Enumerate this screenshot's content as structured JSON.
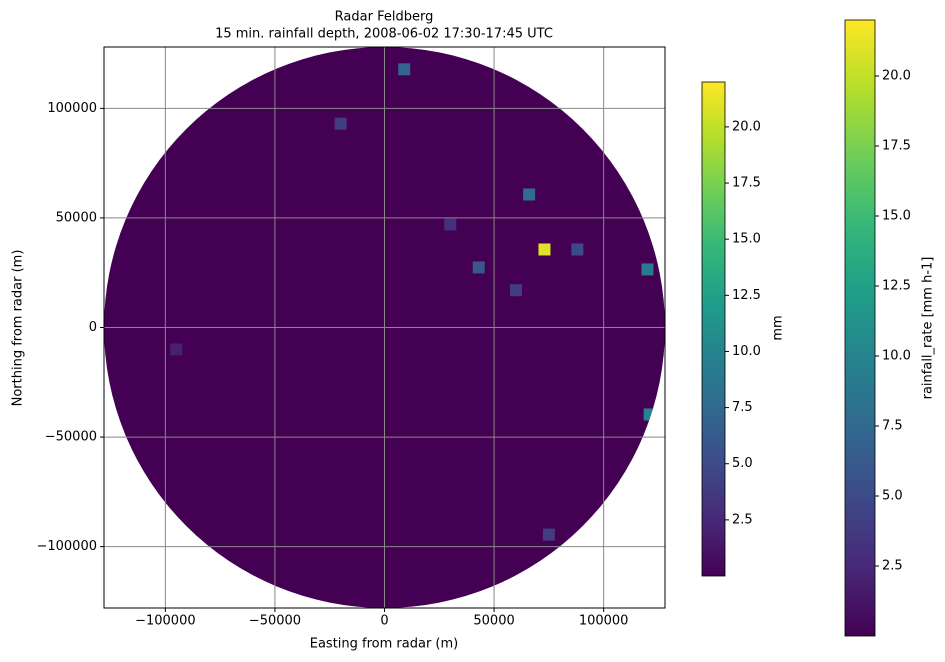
{
  "chart_data": {
    "type": "heatmap",
    "title": "Radar Feldberg",
    "subtitle": "15 min. rainfall depth, 2008-06-02 17:30-17:45 UTC",
    "xlabel": "Easting from radar (m)",
    "ylabel": "Northing from radar (m)",
    "x": [
      73000,
      66000,
      9000,
      120000,
      121000,
      -20000,
      43000,
      88000,
      75000,
      -95000,
      60000,
      30000
    ],
    "y": [
      35600,
      60700,
      117800,
      26500,
      -39700,
      93000,
      27400,
      35600,
      -94500,
      -10000,
      17000,
      47000
    ],
    "values": [
      21,
      8,
      7,
      9,
      10,
      4,
      6,
      5,
      4,
      2,
      4,
      3
    ],
    "xlim": [
      -128000,
      128000
    ],
    "ylim": [
      -128000,
      128000
    ],
    "xticks": [
      {
        "value": -100000,
        "label": "−100000"
      },
      {
        "value": -50000,
        "label": "−50000"
      },
      0,
      50000,
      100000
    ],
    "yticks": [
      {
        "value": -100000,
        "label": "−100000"
      },
      {
        "value": -50000,
        "label": "−50000"
      },
      0,
      50000,
      100000
    ],
    "grid": true,
    "colormap": "viridis",
    "colorbars": [
      {
        "label": "mm",
        "lim": [
          0,
          22
        ],
        "ticks": [
          2.5,
          {
            "value": 5,
            "label": "5.0"
          },
          7.5,
          {
            "value": 10,
            "label": "10.0"
          },
          12.5,
          {
            "value": 15,
            "label": "15.0"
          },
          17.5,
          {
            "value": 20,
            "label": "20.0"
          }
        ]
      },
      {
        "label": "rainfall_rate [mm h-1]",
        "lim": [
          0,
          22
        ],
        "ticks": [
          2.5,
          {
            "value": 5,
            "label": "5.0"
          },
          7.5,
          {
            "value": 10,
            "label": "10.0"
          },
          12.5,
          {
            "value": 15,
            "label": "15.0"
          },
          17.5,
          {
            "value": 20,
            "label": "20.0"
          }
        ]
      }
    ]
  }
}
